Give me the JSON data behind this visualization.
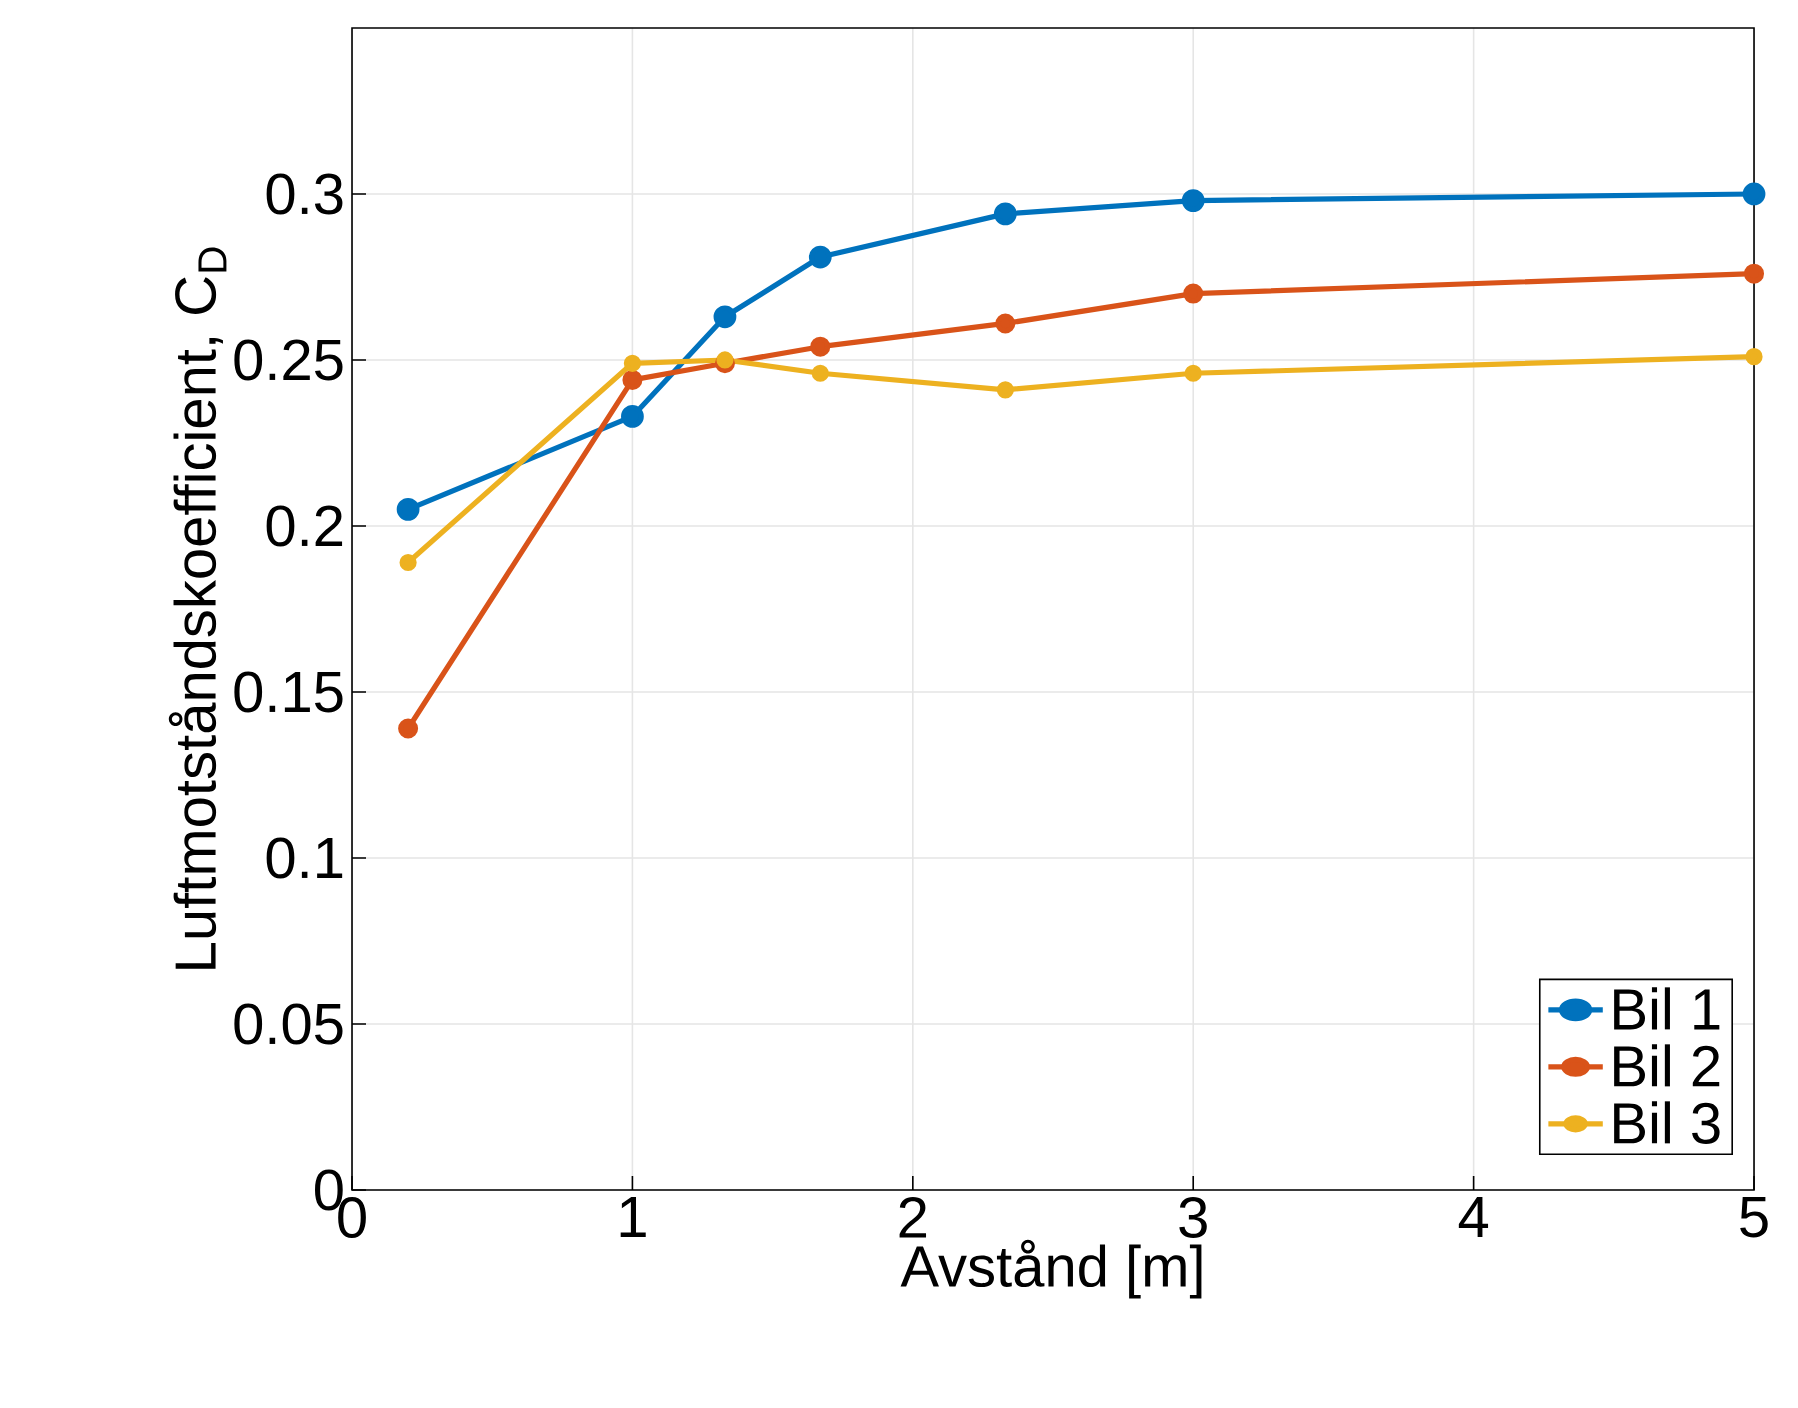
{
  "chart_data": {
    "type": "line",
    "xlabel": "Avstånd [m]",
    "ylabel": "Luftmotståndskoefficient, C$_{D}$",
    "xlim": [
      0,
      5
    ],
    "ylim": [
      0,
      0.35
    ],
    "xticks": [
      0,
      1,
      2,
      3,
      4,
      5
    ],
    "yticks": [
      0,
      0.05,
      0.1,
      0.15,
      0.2,
      0.25,
      0.3
    ],
    "grid": true,
    "legend": "bottom right",
    "marker": "circle",
    "line_style": "solid",
    "x": [
      0.2,
      1,
      1.33,
      1.67,
      2.33,
      3,
      5
    ],
    "series": [
      {
        "name": "Bil 1",
        "color": "#0072bd",
        "values": [
          0.205,
          0.233,
          0.263,
          0.281,
          0.294,
          0.298,
          0.3
        ]
      },
      {
        "name": "Bil 2",
        "color": "#d95319",
        "values": [
          0.139,
          0.244,
          0.249,
          0.254,
          0.261,
          0.27,
          0.276
        ]
      },
      {
        "name": "Bil 3",
        "color": "#edb120",
        "values": [
          0.189,
          0.249,
          0.25,
          0.246,
          0.241,
          0.246,
          0.251
        ]
      }
    ]
  }
}
